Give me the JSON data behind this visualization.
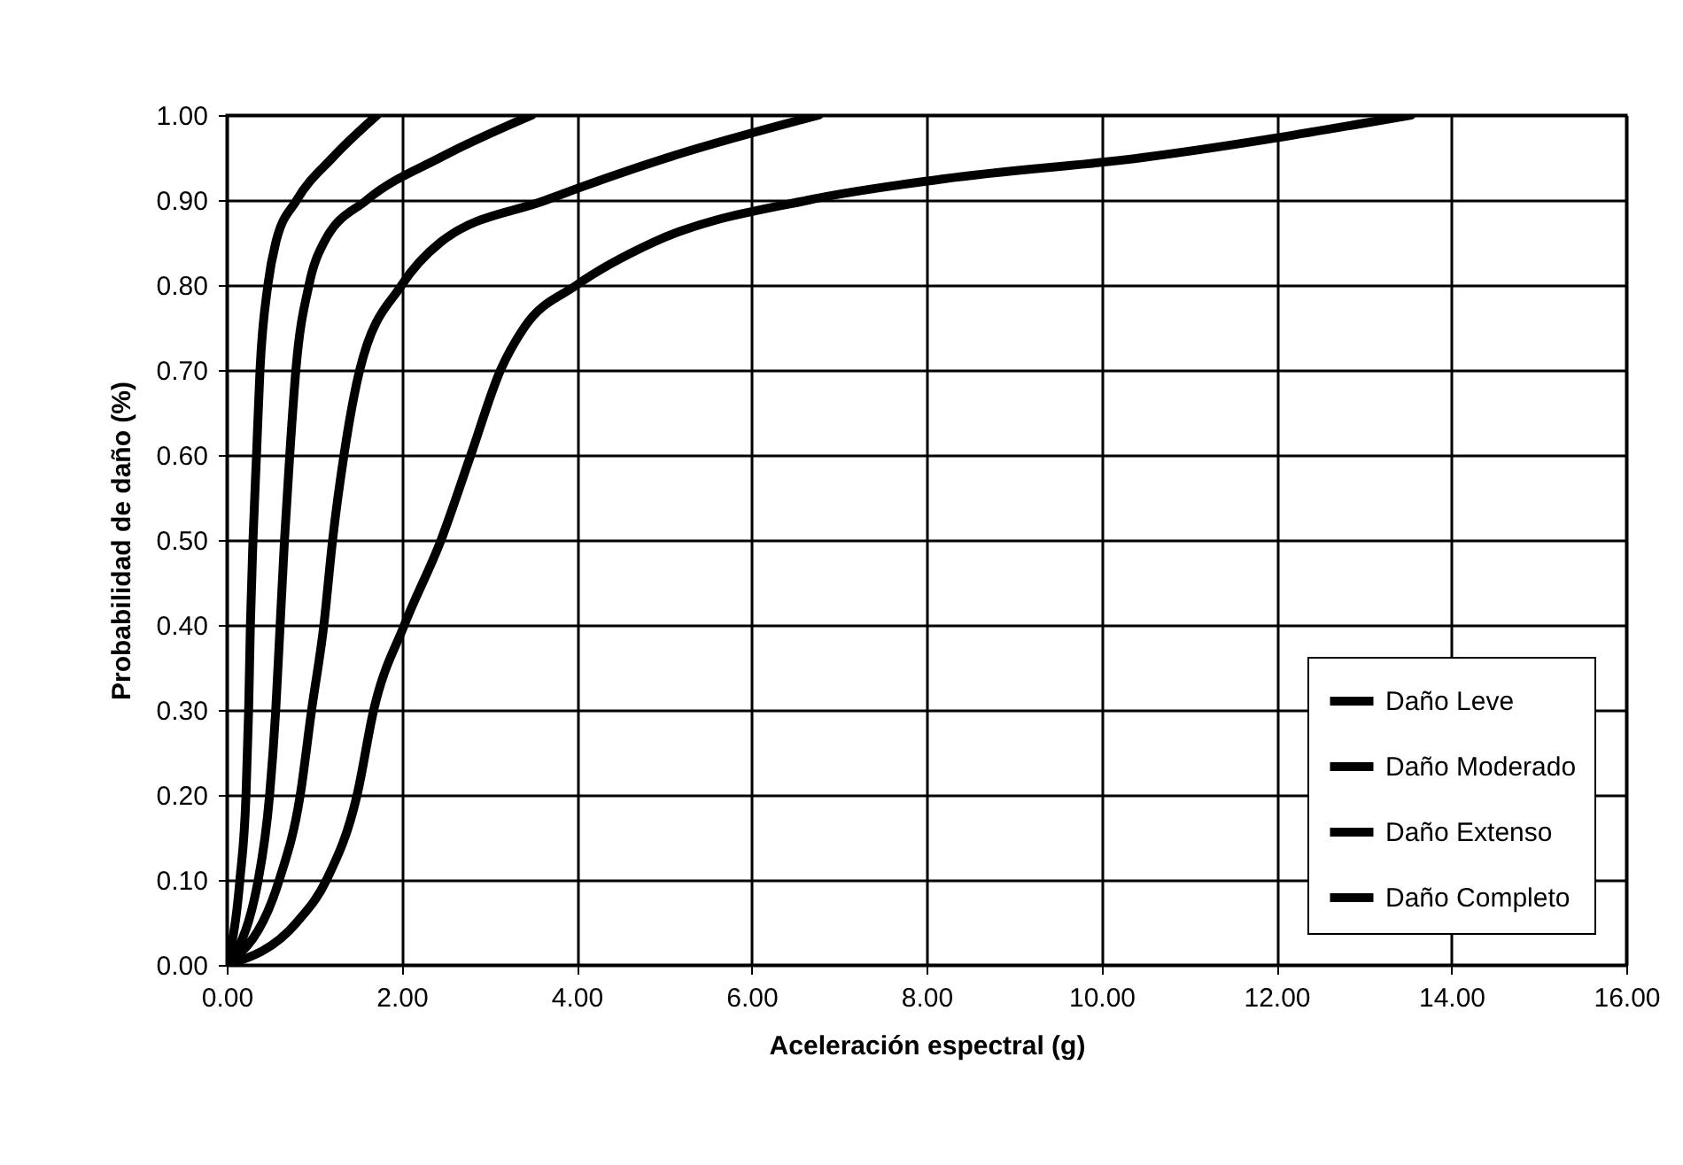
{
  "chart_data": {
    "type": "line",
    "xlabel": "Aceleración espectral (g)",
    "ylabel": "Probabilidad de daño (%)",
    "xlim": [
      0,
      16
    ],
    "ylim": [
      0,
      1
    ],
    "xticks": [
      {
        "value": 0,
        "label": "0.00"
      },
      {
        "value": 2,
        "label": "2.00"
      },
      {
        "value": 4,
        "label": "4.00"
      },
      {
        "value": 6,
        "label": "6.00"
      },
      {
        "value": 8,
        "label": "8.00"
      },
      {
        "value": 10,
        "label": "10.00"
      },
      {
        "value": 12,
        "label": "12.00"
      },
      {
        "value": 14,
        "label": "14.00"
      },
      {
        "value": 16,
        "label": "16.00"
      }
    ],
    "yticks": [
      {
        "value": 0,
        "label": "0.00"
      },
      {
        "value": 0.1,
        "label": "0.10"
      },
      {
        "value": 0.2,
        "label": "0.20"
      },
      {
        "value": 0.3,
        "label": "0.30"
      },
      {
        "value": 0.4,
        "label": "0.40"
      },
      {
        "value": 0.5,
        "label": "0.50"
      },
      {
        "value": 0.6,
        "label": "0.60"
      },
      {
        "value": 0.7,
        "label": "0.70"
      },
      {
        "value": 0.8,
        "label": "0.80"
      },
      {
        "value": 0.9,
        "label": "0.90"
      },
      {
        "value": 1,
        "label": "1.00"
      }
    ],
    "grid": true,
    "legend": "bottom right",
    "marker": "none",
    "line_style": "solid",
    "series": [
      {
        "name": "Daño Leve",
        "color": "#000000",
        "x": [
          0,
          0.15,
          0.22,
          0.25,
          0.27,
          0.3,
          0.34,
          0.38,
          0.47,
          0.56,
          0.8,
          1.21,
          1.72
        ],
        "values": [
          0,
          0.1,
          0.2,
          0.3,
          0.4,
          0.5,
          0.6,
          0.7,
          0.8,
          0.85,
          0.9,
          0.95,
          1
        ]
      },
      {
        "name": "Daño Moderado",
        "color": "#000000",
        "x": [
          0,
          0.36,
          0.49,
          0.56,
          0.61,
          0.66,
          0.72,
          0.79,
          0.94,
          1.11,
          1.6,
          2.44,
          3.49
        ],
        "values": [
          0,
          0.1,
          0.2,
          0.3,
          0.4,
          0.5,
          0.6,
          0.7,
          0.8,
          0.85,
          0.9,
          0.95,
          1
        ]
      },
      {
        "name": "Daño Extenso",
        "color": "#000000",
        "x": [
          0,
          0.6,
          0.84,
          0.97,
          1.11,
          1.21,
          1.34,
          1.52,
          2,
          2.44,
          3.65,
          5.04,
          6.77
        ],
        "values": [
          0,
          0.1,
          0.2,
          0.3,
          0.4,
          0.5,
          0.6,
          0.7,
          0.8,
          0.85,
          0.9,
          0.95,
          1
        ]
      },
      {
        "name": "Daño Completo",
        "color": "#000000",
        "x": [
          0,
          0.8,
          1.14,
          1.49,
          1.68,
          2.03,
          2.45,
          2.79,
          3.13,
          3.4,
          4,
          4.87,
          6.65,
          8.2,
          10.47,
          13.54
        ],
        "values": [
          0,
          0.05,
          0.1,
          0.2,
          0.3,
          0.4,
          0.5,
          0.6,
          0.7,
          0.75,
          0.8,
          0.85,
          0.9,
          0.925,
          0.95,
          1
        ]
      }
    ]
  }
}
